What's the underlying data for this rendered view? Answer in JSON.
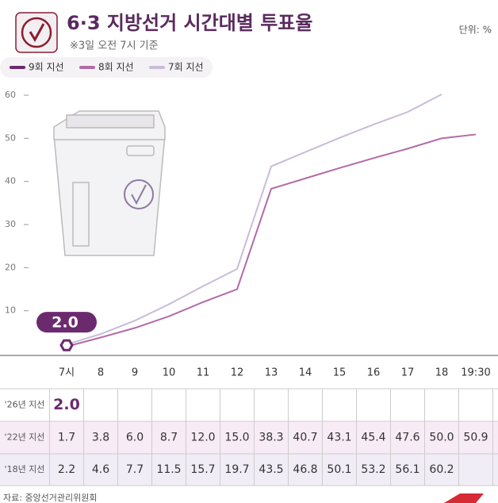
{
  "chart_data": {
    "type": "line",
    "title": "6·3 지방선거 시간대별 투표율",
    "subtitle": "※3일 오전 7시 기준",
    "unit": "단위: %",
    "source": "자료: 중앙선거관리위원회",
    "categories": [
      "7시",
      "8",
      "9",
      "10",
      "11",
      "12",
      "13",
      "14",
      "15",
      "16",
      "17",
      "18",
      "19:30"
    ],
    "series": [
      {
        "name": "9회 지선",
        "row_label": "'26년 지선",
        "color": "#6b2a6e",
        "values": [
          2.0,
          null,
          null,
          null,
          null,
          null,
          null,
          null,
          null,
          null,
          null,
          null,
          null
        ],
        "value_labels": [
          "2.0",
          null,
          null,
          null,
          null,
          null,
          null,
          null,
          null,
          null,
          null,
          null,
          null
        ]
      },
      {
        "name": "8회 지선",
        "row_label": "'22년 지선",
        "color": "#b26aa8",
        "values": [
          1.7,
          3.8,
          6.0,
          8.7,
          12.0,
          15.0,
          38.3,
          40.7,
          43.1,
          45.4,
          47.6,
          50.0,
          50.9
        ],
        "value_labels": [
          "1.7",
          "3.8",
          "6.0",
          "8.7",
          "12.0",
          "15.0",
          "38.3",
          "40.7",
          "43.1",
          "45.4",
          "47.6",
          "50.0",
          "50.9"
        ]
      },
      {
        "name": "7회 지선",
        "row_label": "'18년 지선",
        "color": "#c9bcd8",
        "values": [
          2.2,
          4.6,
          7.7,
          11.5,
          15.7,
          19.7,
          43.5,
          46.8,
          50.1,
          53.2,
          56.1,
          60.2,
          null
        ],
        "value_labels": [
          "2.2",
          "4.6",
          "7.7",
          "11.5",
          "15.7",
          "19.7",
          "43.5",
          "46.8",
          "50.1",
          "53.2",
          "56.1",
          "60.2",
          null
        ]
      }
    ],
    "ylim": [
      0,
      60
    ],
    "yticks": [
      10,
      20,
      30,
      40,
      50,
      60
    ]
  }
}
